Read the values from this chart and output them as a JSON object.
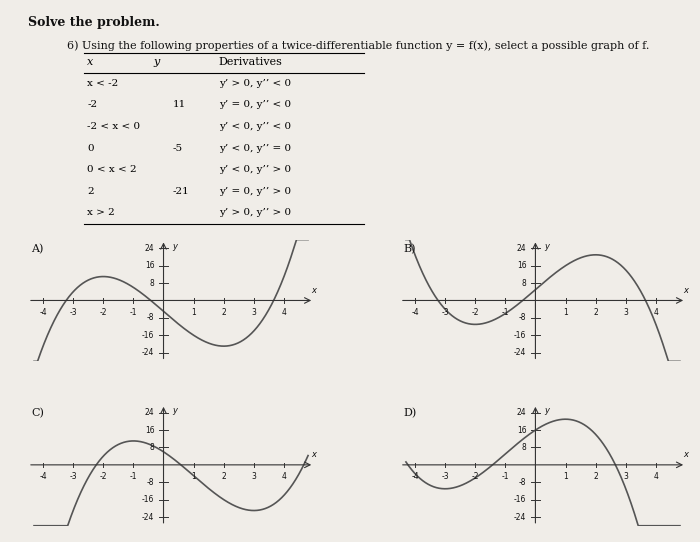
{
  "title_bold": "Solve the problem.",
  "subtitle": "6) Using the following properties of a twice-differentiable function y = f(x), select a possible graph of f.",
  "table": {
    "headers": [
      "x",
      "y",
      "Derivatives"
    ],
    "rows": [
      [
        "x < -2",
        "",
        "y’ > 0, y’’ < 0"
      ],
      [
        "-2",
        "11",
        "y’ = 0, y’’ < 0"
      ],
      [
        "-2 < x < 0",
        "",
        "y’ < 0, y’’ < 0"
      ],
      [
        "0",
        "-5",
        "y’ < 0, y’’ = 0"
      ],
      [
        "0 < x < 2",
        "",
        "y’ < 0, y’’ > 0"
      ],
      [
        "2",
        "-21",
        "y’ = 0, y’’ > 0"
      ],
      [
        "x > 2",
        "",
        "y’ > 0, y’’ > 0"
      ]
    ]
  },
  "graph_labels": [
    "A)",
    "B)",
    "C)",
    "D)"
  ],
  "axes_xlim": [
    -4.5,
    5
  ],
  "axes_ylim": [
    -28,
    28
  ],
  "yticks": [
    -24,
    -16,
    -8,
    8,
    16,
    24
  ],
  "xticks": [
    -4,
    -3,
    -2,
    -1,
    1,
    2,
    3,
    4
  ],
  "background_color": "#f0ede8",
  "curve_color": "#555555",
  "axis_color": "#333333",
  "text_color": "#111111"
}
